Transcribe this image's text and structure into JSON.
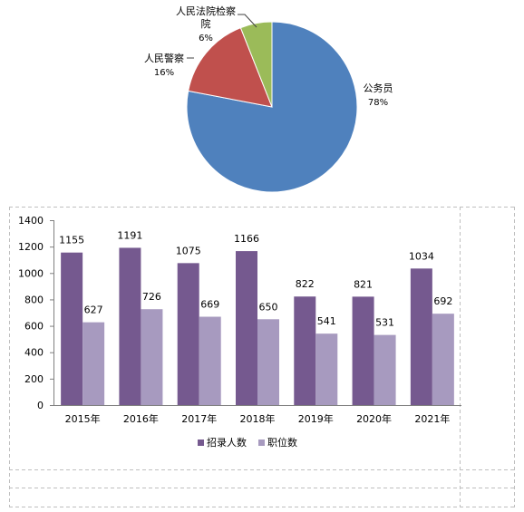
{
  "chart_data": [
    {
      "type": "pie",
      "slices": [
        {
          "label": "公务员",
          "percent_label": "78%",
          "value": 78,
          "color": "#4F81BD"
        },
        {
          "label": "人民警察",
          "percent_label": "16%",
          "value": 16,
          "color": "#C0504D"
        },
        {
          "label_lines": [
            "人民法院检察",
            "院"
          ],
          "percent_label": "6%",
          "value": 6,
          "color": "#9BBB59"
        }
      ]
    },
    {
      "type": "bar",
      "categories": [
        "2015年",
        "2016年",
        "2017年",
        "2018年",
        "2019年",
        "2020年",
        "2021年"
      ],
      "series": [
        {
          "name": "招录人数",
          "values": [
            1155,
            1191,
            1075,
            1166,
            822,
            821,
            1034
          ],
          "color": "#75598F"
        },
        {
          "name": "职位数",
          "values": [
            627,
            726,
            669,
            650,
            541,
            531,
            692
          ],
          "color": "#A79ABF"
        }
      ],
      "ylim": [
        0,
        1400
      ],
      "yticks": [
        0,
        200,
        400,
        600,
        800,
        1000,
        1200,
        1400
      ],
      "grid": false,
      "legend_position": "bottom"
    }
  ]
}
